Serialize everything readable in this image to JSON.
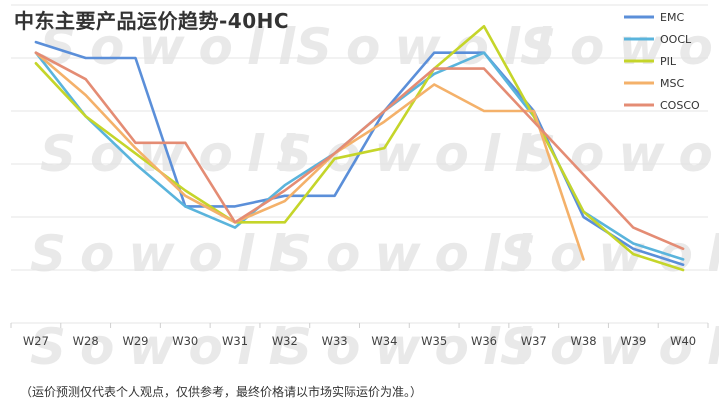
{
  "watermark": "Sowoll",
  "footnote": "（运价预测仅代表个人观点，仅供参考，最终价格请以市场实际运价为准。）",
  "chart_data": {
    "type": "line",
    "title": "中东主要产品运价趋势-40HC",
    "xlabel": "",
    "ylabel": "",
    "categories": [
      "W27",
      "W28",
      "W29",
      "W30",
      "W31",
      "W32",
      "W33",
      "W34",
      "W35",
      "W36",
      "W37",
      "W38",
      "W39",
      "W40"
    ],
    "grid": true,
    "legend_position": "top-right",
    "series": [
      {
        "name": "EMC",
        "color": "#5b8fd9",
        "values": [
          4.15,
          4.0,
          4.0,
          2.6,
          2.6,
          2.7,
          2.7,
          3.5,
          4.05,
          4.05,
          3.5,
          2.5,
          2.2,
          2.05
        ]
      },
      {
        "name": "OOCL",
        "color": "#5ab4dc",
        "values": [
          4.05,
          3.45,
          3.0,
          2.6,
          2.4,
          2.8,
          3.1,
          3.5,
          3.85,
          4.05,
          3.45,
          2.55,
          2.25,
          2.1
        ]
      },
      {
        "name": "PIL",
        "color": "#c5d52a",
        "values": [
          3.95,
          3.45,
          3.1,
          2.75,
          2.45,
          2.45,
          3.05,
          3.15,
          3.9,
          4.3,
          3.45,
          2.55,
          2.15,
          2.0
        ]
      },
      {
        "name": "MSC",
        "color": "#f4b16a",
        "values": [
          4.05,
          3.65,
          3.15,
          2.7,
          2.45,
          2.65,
          3.1,
          3.4,
          3.75,
          3.5,
          3.5,
          2.1,
          null,
          null
        ]
      },
      {
        "name": "COSCO",
        "color": "#e48c74",
        "values": [
          4.05,
          3.8,
          3.2,
          3.2,
          2.45,
          2.75,
          3.1,
          3.5,
          3.9,
          3.9,
          3.4,
          2.9,
          2.4,
          2.2
        ]
      }
    ]
  }
}
